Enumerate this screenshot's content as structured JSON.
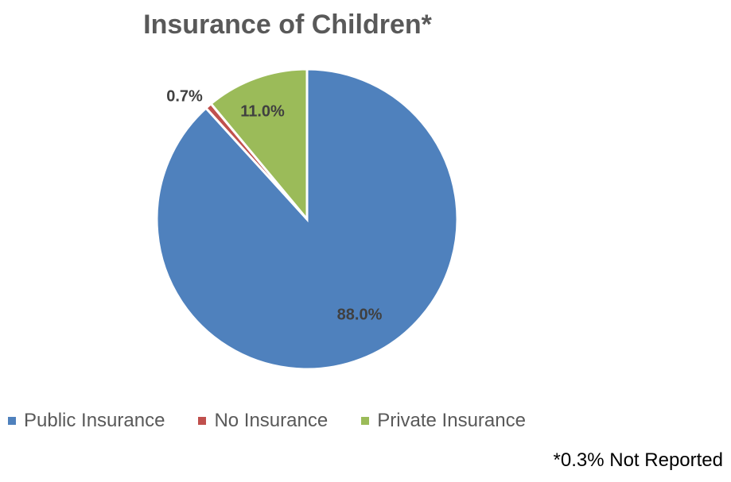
{
  "chart_data": {
    "type": "pie",
    "title": "Insurance of Children*",
    "slices": [
      {
        "name": "Public Insurance",
        "value": 88.0,
        "label": "88.0%",
        "color": "#4F81BD"
      },
      {
        "name": "No Insurance",
        "value": 0.7,
        "label": "0.7%",
        "color": "#C0504D"
      },
      {
        "name": "Private Insurance",
        "value": 11.0,
        "label": "11.0%",
        "color": "#9BBB59"
      }
    ],
    "legend_position": "bottom",
    "footnote": "*0.3% Not Reported"
  }
}
